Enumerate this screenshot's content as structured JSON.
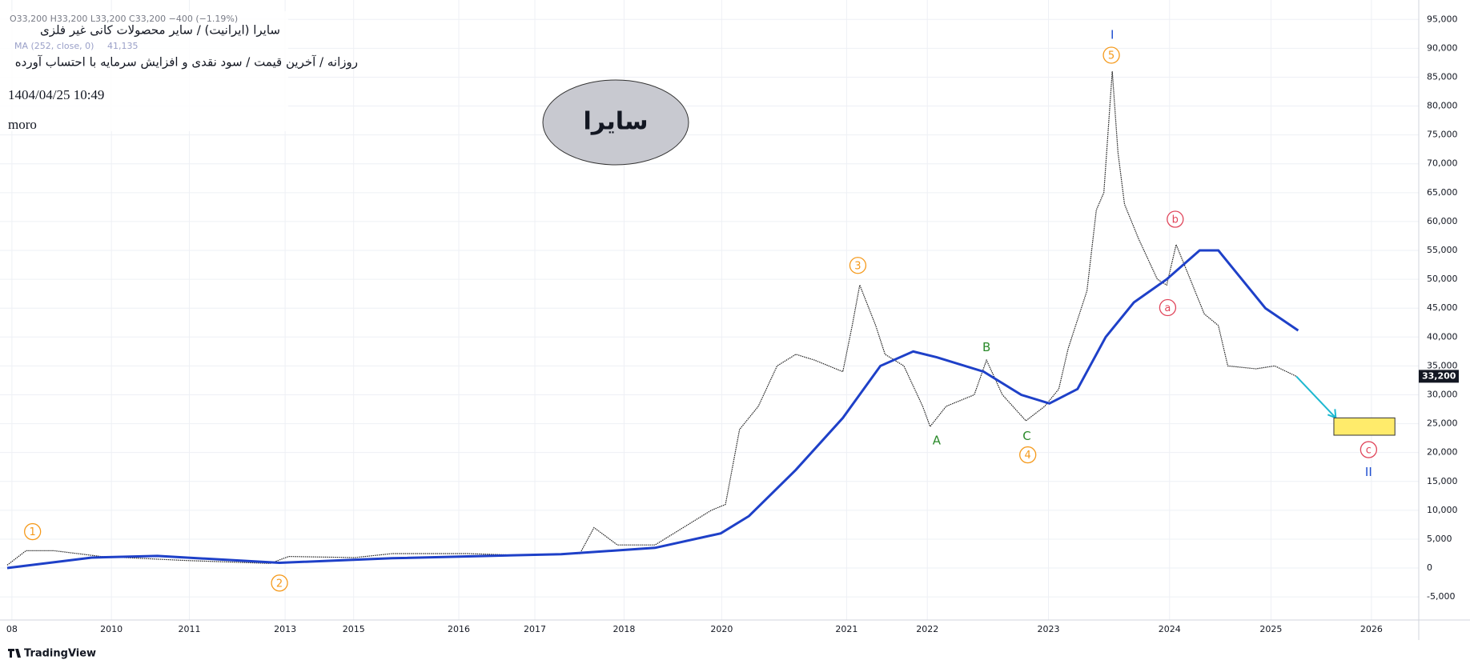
{
  "chart_data": {
    "type": "line",
    "title": "سایرا (ایرانیت) / سایر محصولات کانی غیر فلزی",
    "subtitle": "روزانه / آخرین قیمت / سود نقدی و افزایش سرمایه با احتساب آورده",
    "datetime": "1404/04/25 10:49",
    "author": "moro",
    "badge": "سایرا",
    "ohlc": "O33,200 H33,200 L33,200 C33,200 −400 (−1.19%)",
    "brand": "TradingView",
    "xlim": [
      0,
      1500
    ],
    "xticks": [
      {
        "value": 5,
        "label": "08"
      },
      {
        "value": 111,
        "label": "2010"
      },
      {
        "value": 194,
        "label": "2011"
      },
      {
        "value": 296,
        "label": "2013"
      },
      {
        "value": 369,
        "label": "2015"
      },
      {
        "value": 481,
        "label": "2016"
      },
      {
        "value": 562,
        "label": "2017"
      },
      {
        "value": 657,
        "label": "2018"
      },
      {
        "value": 761,
        "label": "2020"
      },
      {
        "value": 894,
        "label": "2021"
      },
      {
        "value": 980,
        "label": "2022"
      },
      {
        "value": 1109,
        "label": "2023"
      },
      {
        "value": 1238,
        "label": "2024"
      },
      {
        "value": 1346,
        "label": "2025"
      },
      {
        "value": 1453,
        "label": "2026"
      }
    ],
    "ylim": [
      -9000,
      96700
    ],
    "yticks": [
      {
        "value": -5000,
        "label": "-5,000"
      },
      0,
      {
        "value": 5000,
        "label": "5,000"
      },
      {
        "value": 10000,
        "label": "10,000"
      },
      {
        "value": 15000,
        "label": "15,000"
      },
      {
        "value": 20000,
        "label": "20,000"
      },
      {
        "value": 25000,
        "label": "25,000"
      },
      {
        "value": 30000,
        "label": "30,000"
      },
      {
        "value": 35000,
        "label": "35,000"
      },
      {
        "value": 40000,
        "label": "40,000"
      },
      {
        "value": 45000,
        "label": "45,000"
      },
      {
        "value": 50000,
        "label": "50,000"
      },
      {
        "value": 55000,
        "label": "55,000"
      },
      {
        "value": 60000,
        "label": "60,000"
      },
      {
        "value": 65000,
        "label": "65,000"
      },
      {
        "value": 70000,
        "label": "70,000"
      },
      {
        "value": 75000,
        "label": "75,000"
      },
      {
        "value": 80000,
        "label": "80,000"
      },
      {
        "value": 85000,
        "label": "85,000"
      },
      {
        "value": 90000,
        "label": "90,000"
      },
      {
        "value": 95000,
        "label": "95,000"
      }
    ],
    "grid": true,
    "series": [
      {
        "color": "#222222",
        "last_label": "33,200",
        "x": [
          0,
          20,
          50,
          100,
          190,
          280,
          300,
          370,
          410,
          490,
          550,
          610,
          625,
          650,
          690,
          710,
          750,
          765,
          780,
          800,
          820,
          840,
          860,
          890,
          900,
          908,
          925,
          935,
          955,
          975,
          983,
          1000,
          1030,
          1043,
          1060,
          1085,
          1105,
          1120,
          1130,
          1150,
          1160,
          1168,
          1177,
          1183,
          1190,
          1205,
          1225,
          1235,
          1245,
          1260,
          1275,
          1290,
          1300,
          1330,
          1350,
          1373
        ],
        "values": [
          500,
          3000,
          3000,
          2000,
          1300,
          800,
          2000,
          1800,
          2500,
          2500,
          2200,
          2500,
          7000,
          4000,
          4000,
          6000,
          10000,
          11000,
          24000,
          28000,
          35000,
          37000,
          36000,
          34000,
          42000,
          49000,
          42000,
          37000,
          35000,
          28000,
          24500,
          28000,
          30000,
          36000,
          30000,
          25500,
          28000,
          31000,
          38000,
          48000,
          62000,
          65000,
          86000,
          72000,
          63000,
          57000,
          50000,
          49000,
          56000,
          50000,
          44000,
          42000,
          35000,
          34500,
          35000,
          33200
        ]
      },
      {
        "name": "MA (252, close, 0)",
        "color": "#1e40c8",
        "value_label": "41,135",
        "x": [
          0,
          90,
          160,
          290,
          410,
          590,
          690,
          760,
          790,
          840,
          890,
          930,
          965,
          990,
          1040,
          1080,
          1110,
          1140,
          1170,
          1200,
          1235,
          1270,
          1290,
          1310,
          1340,
          1375
        ],
        "values": [
          0,
          1800,
          2100,
          900,
          1700,
          2400,
          3500,
          6000,
          9000,
          17000,
          26000,
          35000,
          37500,
          36500,
          34000,
          30000,
          28500,
          31000,
          40000,
          46000,
          50000,
          55000,
          55000,
          51000,
          45000,
          41135
        ]
      }
    ],
    "projection": {
      "x": [
        1373,
        1415
      ],
      "values": [
        33200,
        26000
      ],
      "color": "#1fb8d0"
    },
    "target_zone": {
      "x": [
        1413,
        1478
      ],
      "values": [
        23000,
        26000
      ],
      "color": "#ffeb6b"
    },
    "annotations": [
      {
        "text": "1",
        "x": 27,
        "y": 6300,
        "color": "#f59a1c",
        "circle": true
      },
      {
        "text": "2",
        "x": 290,
        "y": -2600,
        "color": "#f59a1c",
        "circle": true
      },
      {
        "text": "3",
        "x": 906,
        "y": 52400,
        "color": "#f59a1c",
        "circle": true
      },
      {
        "text": "4",
        "x": 1087,
        "y": 19600,
        "color": "#f59a1c",
        "circle": true
      },
      {
        "text": "5",
        "x": 1176,
        "y": 88800,
        "color": "#f59a1c",
        "circle": true
      },
      {
        "text": "A",
        "x": 990,
        "y": 22200,
        "color": "#2a8a2a",
        "circle": false
      },
      {
        "text": "B",
        "x": 1043,
        "y": 38300,
        "color": "#2a8a2a",
        "circle": false
      },
      {
        "text": "C",
        "x": 1086,
        "y": 22900,
        "color": "#2a8a2a",
        "circle": false
      },
      {
        "text": "a",
        "x": 1236,
        "y": 45100,
        "color": "#e0455a",
        "circle": true
      },
      {
        "text": "b",
        "x": 1244,
        "y": 60400,
        "color": "#e0455a",
        "circle": true
      },
      {
        "text": "c",
        "x": 1450,
        "y": 20500,
        "color": "#e0455a",
        "circle": true
      },
      {
        "text": "I",
        "x": 1177,
        "y": 92400,
        "color": "#1f4fd0",
        "circle": false
      },
      {
        "text": "II",
        "x": 1450,
        "y": 16700,
        "color": "#1f4fd0",
        "circle": false
      }
    ]
  }
}
